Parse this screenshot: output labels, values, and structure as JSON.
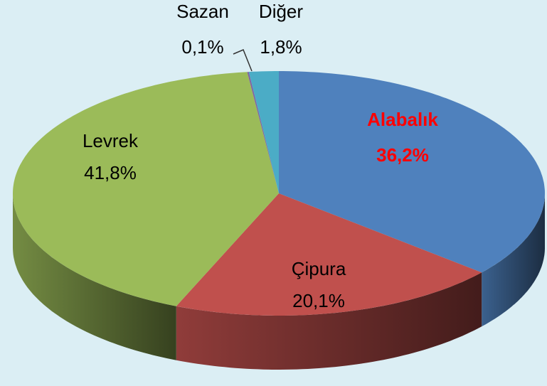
{
  "chart_data": {
    "type": "pie3d",
    "categories": [
      "Alabalık",
      "Çipura",
      "Levrek",
      "Sazan",
      "Diğer"
    ],
    "values": [
      36.2,
      20.1,
      41.8,
      0.1,
      1.8
    ],
    "value_labels": [
      "36,2%",
      "20,1%",
      "41,8%",
      "0,1%",
      "1,8%"
    ],
    "colors": [
      "#4f81bd",
      "#c0504d",
      "#9bbb59",
      "#8064a2",
      "#4bacc6"
    ]
  }
}
